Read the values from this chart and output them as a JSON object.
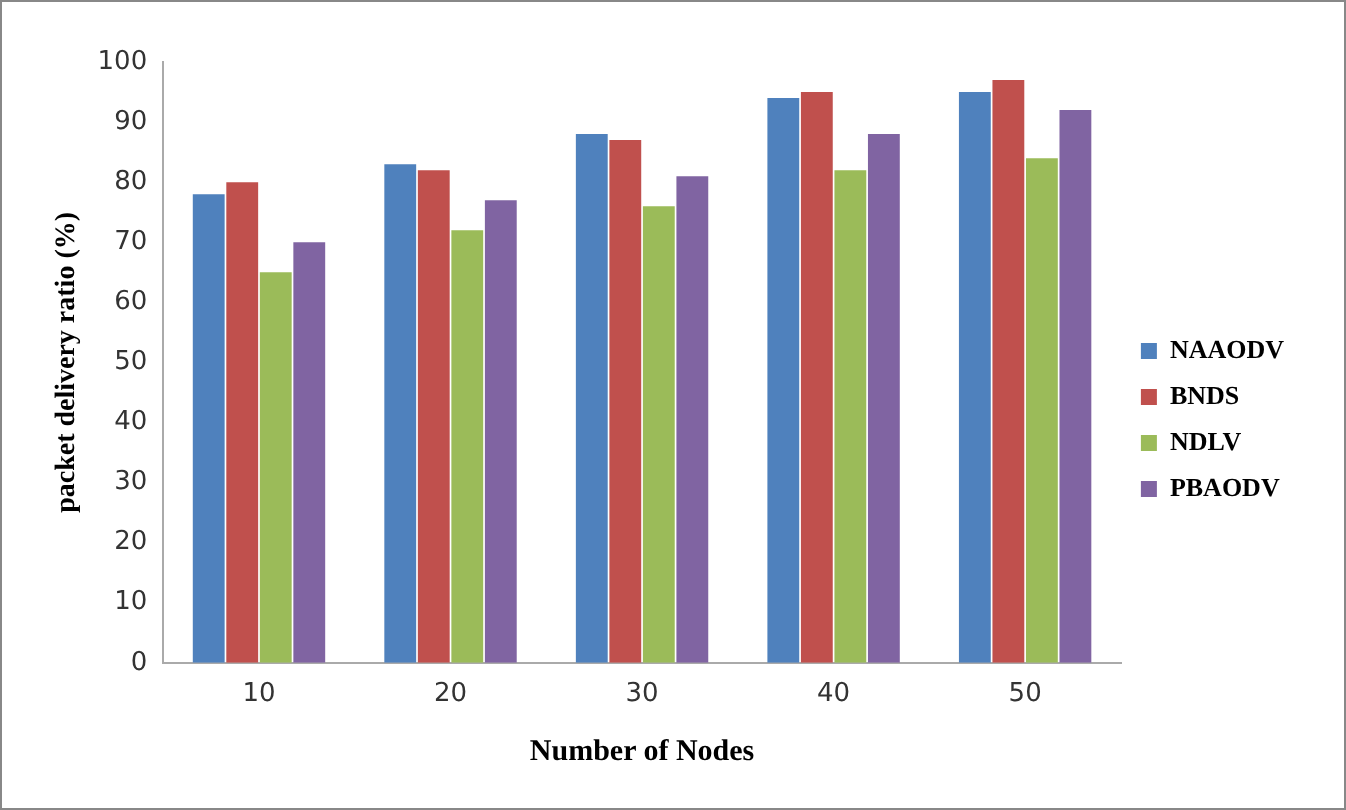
{
  "chart_data": {
    "type": "bar",
    "xlabel": "Number of Nodes",
    "ylabel": "packet delivery ratio (%)",
    "categories": [
      "10",
      "20",
      "30",
      "40",
      "50"
    ],
    "series": [
      {
        "name": "NAAODV",
        "color": "#4f81bd",
        "values": [
          78,
          83,
          88,
          94,
          95
        ]
      },
      {
        "name": "BNDS",
        "color": "#c0504d",
        "values": [
          80,
          82,
          87,
          95,
          97
        ]
      },
      {
        "name": "NDLV",
        "color": "#9bbb59",
        "values": [
          65,
          72,
          76,
          82,
          84
        ]
      },
      {
        "name": "PBAODV",
        "color": "#8064a2",
        "values": [
          70,
          77,
          81,
          88,
          92
        ]
      }
    ],
    "ylim": [
      0,
      100
    ],
    "yticks": [
      0,
      10,
      20,
      30,
      40,
      50,
      60,
      70,
      80,
      90,
      100
    ],
    "grid": false,
    "legend": "right"
  }
}
